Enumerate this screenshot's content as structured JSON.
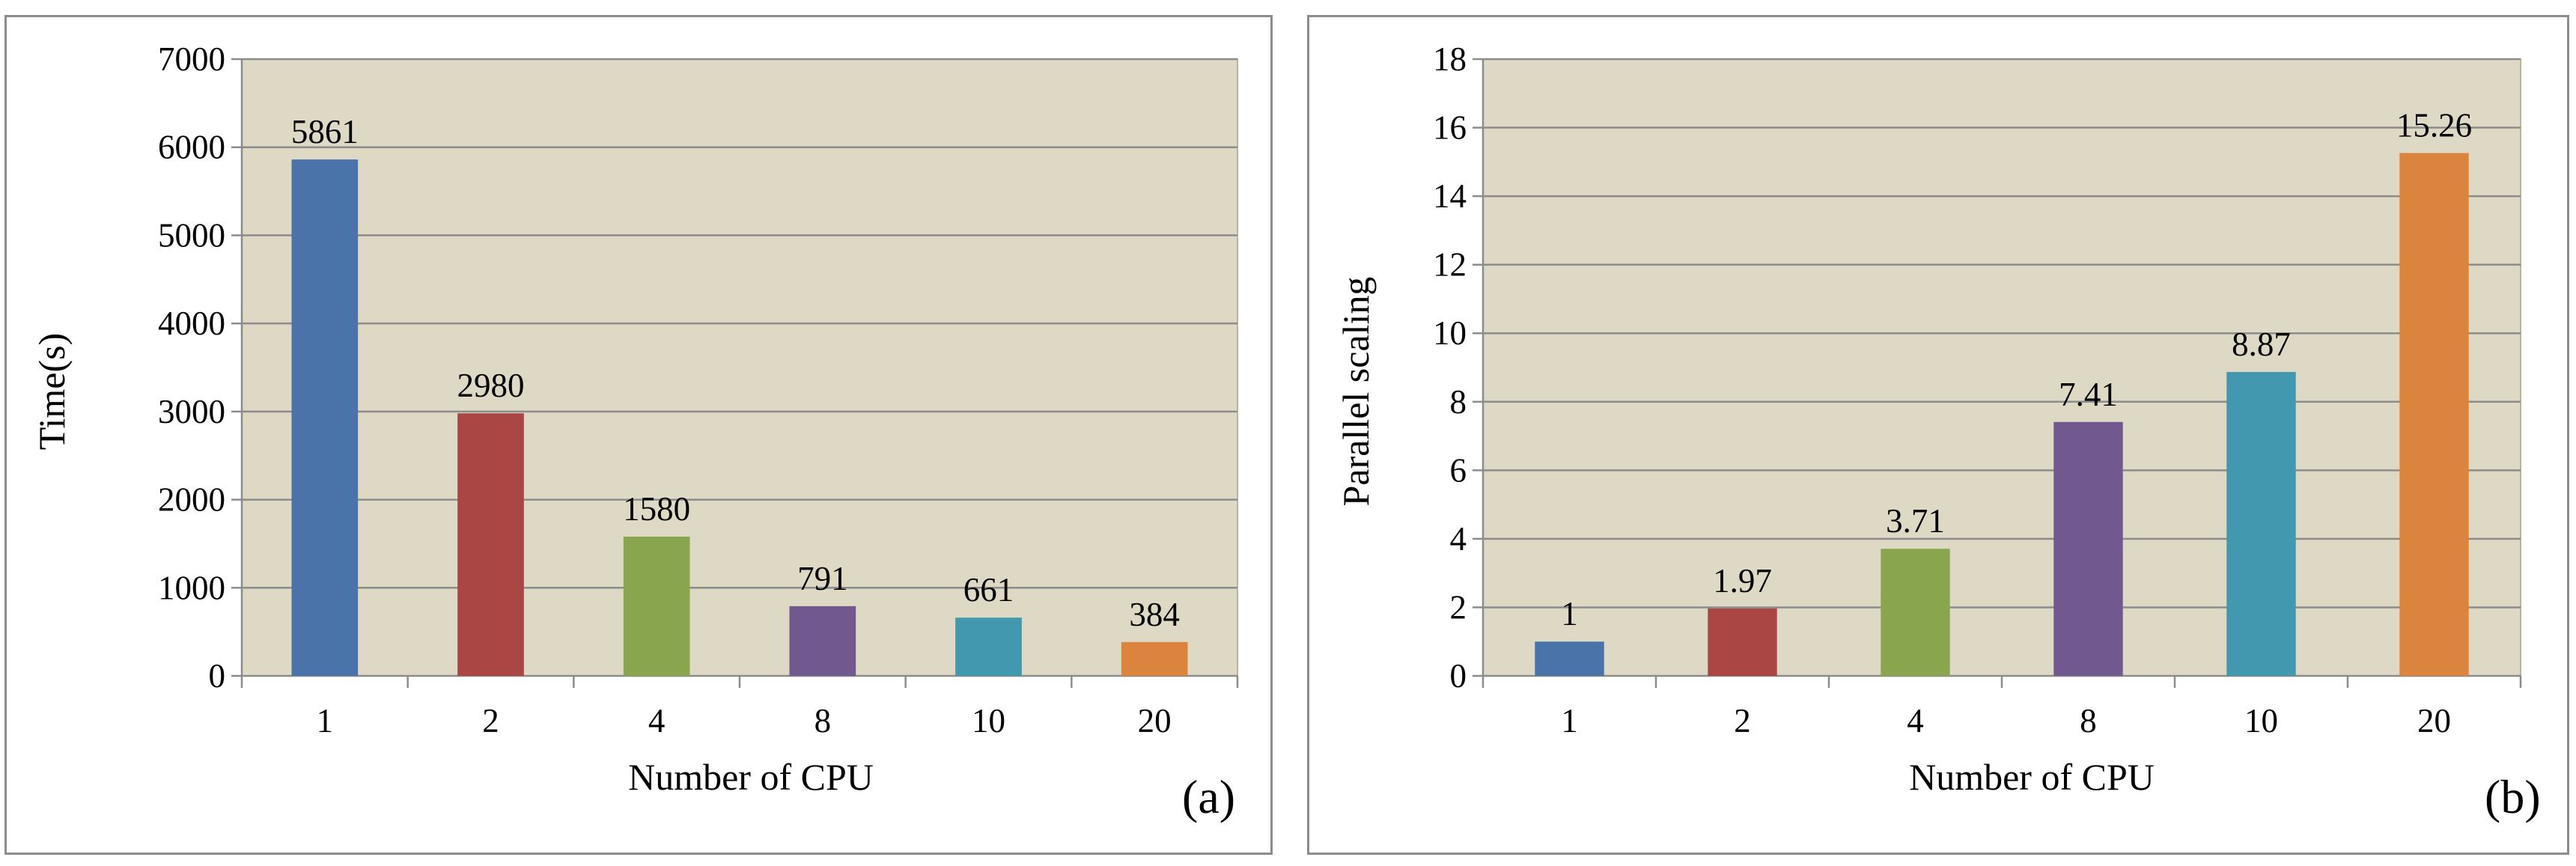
{
  "chart_data": [
    {
      "type": "bar",
      "panel_label": "(a)",
      "categories": [
        "1",
        "2",
        "4",
        "8",
        "10",
        "20"
      ],
      "values": [
        5861,
        2980,
        1580,
        791,
        661,
        384
      ],
      "data_labels": [
        "5861",
        "2980",
        "1580",
        "791",
        "661",
        "384"
      ],
      "xlabel": "Number of CPU",
      "ylabel": "Time(s)",
      "ylim": [
        0,
        7000
      ],
      "yticks": [
        0,
        1000,
        2000,
        3000,
        4000,
        5000,
        6000,
        7000
      ],
      "grid": true,
      "colors": [
        "#4A73AA",
        "#AA4643",
        "#89A54E",
        "#71588F",
        "#4198AF",
        "#DB843D"
      ],
      "plot_background": "#DDD9C4"
    },
    {
      "type": "bar",
      "panel_label": "(b)",
      "categories": [
        "1",
        "2",
        "4",
        "8",
        "10",
        "20"
      ],
      "values": [
        1,
        1.97,
        3.71,
        7.41,
        8.87,
        15.26
      ],
      "data_labels": [
        "1",
        "1.97",
        "3.71",
        "7.41",
        "8.87",
        "15.26"
      ],
      "xlabel": "Number of CPU",
      "ylabel": "Parallel scaling",
      "ylim": [
        0,
        18
      ],
      "yticks": [
        0,
        2,
        4,
        6,
        8,
        10,
        12,
        14,
        16,
        18
      ],
      "grid": true,
      "colors": [
        "#4A73AA",
        "#AA4643",
        "#89A54E",
        "#71588F",
        "#4198AF",
        "#DB843D"
      ],
      "plot_background": "#DDD9C4"
    }
  ]
}
